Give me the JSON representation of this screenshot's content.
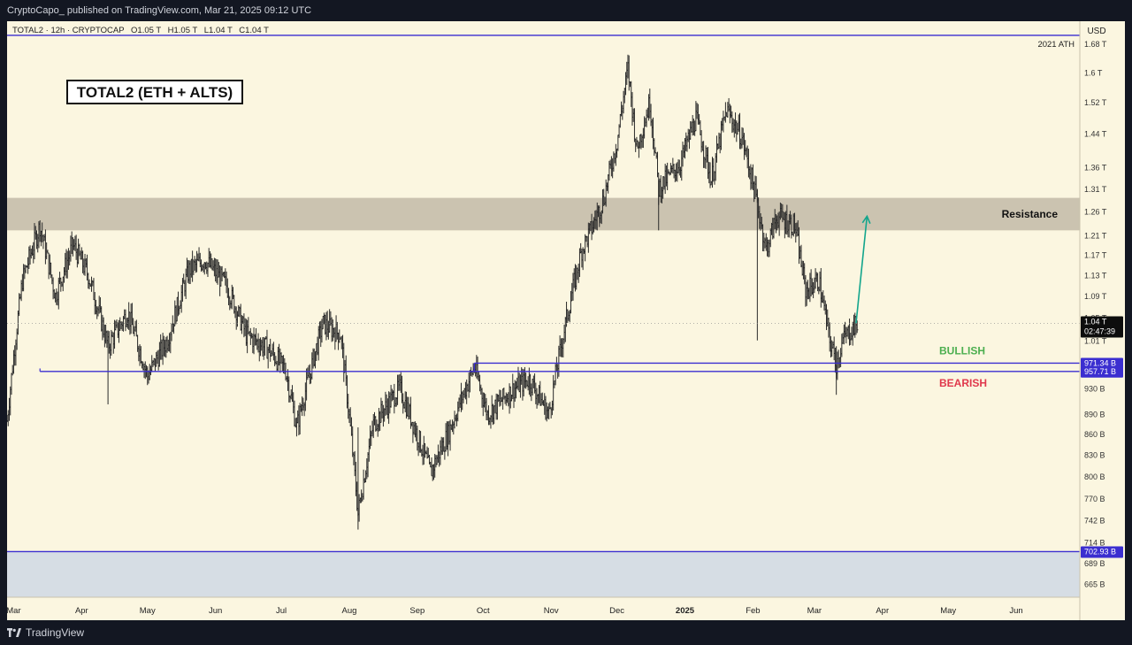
{
  "header": {
    "published_by": "CryptoCapo_ published on TradingView.com, Mar 21, 2025 09:12 UTC"
  },
  "footer": {
    "brand": "TradingView",
    "brand_icon": "tradingview-logo-icon"
  },
  "chart_data": {
    "type": "candlestick",
    "title": "TOTAL2 (ETH + ALTS)",
    "symbol_info": {
      "text": "TOTAL2 · 12h · CRYPTOCAP",
      "open": "O1.05 T",
      "high": "H1.05 T",
      "low": "L1.04 T",
      "close": "C1.04 T"
    },
    "currency": "USD",
    "y_scale": "log",
    "ylim": [
      650,
      1710
    ],
    "y_unit": "B",
    "y_ticks": [
      {
        "v": 1680,
        "label": "1.68 T"
      },
      {
        "v": 1600,
        "label": "1.6 T"
      },
      {
        "v": 1520,
        "label": "1.52 T"
      },
      {
        "v": 1440,
        "label": "1.44 T"
      },
      {
        "v": 1360,
        "label": "1.36 T"
      },
      {
        "v": 1310,
        "label": "1.31 T"
      },
      {
        "v": 1260,
        "label": "1.26 T"
      },
      {
        "v": 1210,
        "label": "1.21 T"
      },
      {
        "v": 1170,
        "label": "1.17 T"
      },
      {
        "v": 1130,
        "label": "1.13 T"
      },
      {
        "v": 1090,
        "label": "1.09 T"
      },
      {
        "v": 1050,
        "label": "1.05 T"
      },
      {
        "v": 1010,
        "label": "1.01 T"
      },
      {
        "v": 930,
        "label": "930 B"
      },
      {
        "v": 890,
        "label": "890 B"
      },
      {
        "v": 860,
        "label": "860 B"
      },
      {
        "v": 830,
        "label": "830 B"
      },
      {
        "v": 800,
        "label": "800 B"
      },
      {
        "v": 770,
        "label": "770 B"
      },
      {
        "v": 742,
        "label": "742 B"
      },
      {
        "v": 714,
        "label": "714 B"
      },
      {
        "v": 689,
        "label": "689 B"
      },
      {
        "v": 665,
        "label": "665 B"
      }
    ],
    "x_labels": [
      "Mar",
      "Apr",
      "May",
      "Jun",
      "Jul",
      "Aug",
      "Sep",
      "Oct",
      "Nov",
      "Dec",
      "2025",
      "Feb",
      "Mar",
      "Apr",
      "May",
      "Jun"
    ],
    "x_range": [
      "2024-02-27",
      "2025-06-30"
    ],
    "x_ticks": [
      "2024-03-01",
      "2024-04-01",
      "2024-05-01",
      "2024-06-01",
      "2024-07-01",
      "2024-08-01",
      "2024-09-01",
      "2024-10-01",
      "2024-11-01",
      "2024-12-01",
      "2025-01-01",
      "2025-02-01",
      "2025-03-01",
      "2025-04-01",
      "2025-05-01",
      "2025-06-01"
    ],
    "price_path": [
      [
        "2024-02-27",
        880
      ],
      [
        "2024-03-05",
        1120
      ],
      [
        "2024-03-13",
        1230
      ],
      [
        "2024-03-20",
        1090
      ],
      [
        "2024-03-28",
        1190
      ],
      [
        "2024-04-04",
        1130
      ],
      [
        "2024-04-13",
        1000
      ],
      [
        "2024-04-22",
        1060
      ],
      [
        "2024-05-01",
        950
      ],
      [
        "2024-05-10",
        1010
      ],
      [
        "2024-05-20",
        1140
      ],
      [
        "2024-05-27",
        1160
      ],
      [
        "2024-06-06",
        1110
      ],
      [
        "2024-06-15",
        1020
      ],
      [
        "2024-06-25",
        995
      ],
      [
        "2024-07-03",
        960
      ],
      [
        "2024-07-08",
        870
      ],
      [
        "2024-07-20",
        1040
      ],
      [
        "2024-07-28",
        1020
      ],
      [
        "2024-08-05",
        750
      ],
      [
        "2024-08-12",
        875
      ],
      [
        "2024-08-24",
        930
      ],
      [
        "2024-09-07",
        805
      ],
      [
        "2024-09-15",
        860
      ],
      [
        "2024-09-27",
        965
      ],
      [
        "2024-10-03",
        890
      ],
      [
        "2024-10-15",
        930
      ],
      [
        "2024-10-22",
        945
      ],
      [
        "2024-10-31",
        890
      ],
      [
        "2024-11-06",
        1010
      ],
      [
        "2024-11-15",
        1180
      ],
      [
        "2024-11-20",
        1230
      ],
      [
        "2024-11-25",
        1290
      ],
      [
        "2024-12-01",
        1420
      ],
      [
        "2024-12-06",
        1610
      ],
      [
        "2024-12-10",
        1400
      ],
      [
        "2024-12-16",
        1520
      ],
      [
        "2024-12-20",
        1310
      ],
      [
        "2024-12-30",
        1370
      ],
      [
        "2025-01-06",
        1480
      ],
      [
        "2025-01-13",
        1330
      ],
      [
        "2025-01-20",
        1500
      ],
      [
        "2025-01-27",
        1430
      ],
      [
        "2025-02-02",
        1300
      ],
      [
        "2025-02-07",
        1180
      ],
      [
        "2025-02-12",
        1250
      ],
      [
        "2025-02-20",
        1230
      ],
      [
        "2025-02-25",
        1100
      ],
      [
        "2025-03-03",
        1120
      ],
      [
        "2025-03-08",
        1010
      ],
      [
        "2025-03-11",
        970
      ],
      [
        "2025-03-14",
        1010
      ],
      [
        "2025-03-18",
        1030
      ],
      [
        "2025-03-21",
        1040
      ]
    ],
    "last_price_label": "1.04 T",
    "countdown_label": "02:47:39",
    "levels": [
      {
        "label": "2021 ATH",
        "value": 1705,
        "color": "#3b2ed0"
      },
      {
        "label": "971.34 B",
        "value": 971.34,
        "color": "#3b2ed0"
      },
      {
        "label": "957.71 B",
        "value": 957.71,
        "color": "#3b2ed0"
      },
      {
        "label": "702.93 B",
        "value": 702.93,
        "color": "#3b2ed0"
      }
    ],
    "zones": {
      "resistance": {
        "label": "Resistance",
        "from": 1220,
        "to": 1290,
        "color": "#cbc3b0"
      },
      "lower": {
        "from": 650,
        "to": 702.93,
        "color": "#d6dde4"
      }
    },
    "annotations": {
      "bullish": {
        "text": "BULLISH",
        "color": "#4caf50"
      },
      "bearish": {
        "text": "BEARISH",
        "color": "#e0384c"
      },
      "arrow": {
        "color": "#12a58c",
        "from": [
          "2025-03-20",
          1040
        ],
        "to": [
          "2025-03-25",
          1250
        ]
      }
    },
    "ohlc_bar_color": "#2a2a2a"
  }
}
